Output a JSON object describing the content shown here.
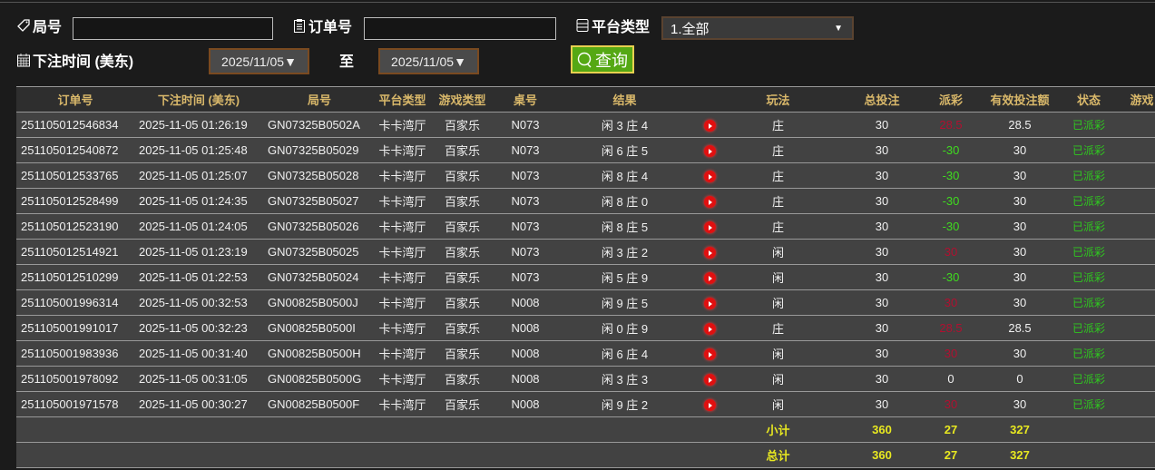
{
  "filters": {
    "round_label": "局号",
    "round_value": "",
    "order_label": "订单号",
    "order_value": "",
    "platform_label": "平台类型",
    "platform_selected": "1.全部",
    "time_label": "下注时间 (美东)",
    "date_from": "2025/11/05▼",
    "to_label": "至",
    "date_to": "2025/11/05▼",
    "query_label": "查询"
  },
  "colors": {
    "payout_negative": "#3fdc1f",
    "payout_positive": "#b01030",
    "status": "#2fc81f",
    "totals": "#e8e820",
    "header_text": "#d9b86a"
  },
  "table": {
    "headers": [
      "订单号",
      "下注时间 (美东)",
      "局号",
      "平台类型",
      "游戏类型",
      "桌号",
      "结果",
      "",
      "玩法",
      "总投注",
      "派彩",
      "有效投注额",
      "状态",
      "游戏"
    ],
    "rows": [
      [
        "251105012546834",
        "2025-11-05 01:26:19",
        "GN07325B0502A",
        "卡卡湾厅",
        "百家乐",
        "N073",
        "闲 3 庄 4",
        "庄",
        "30",
        "28.5",
        "28.5",
        "已派彩"
      ],
      [
        "251105012540872",
        "2025-11-05 01:25:48",
        "GN07325B05029",
        "卡卡湾厅",
        "百家乐",
        "N073",
        "闲 6 庄 5",
        "庄",
        "30",
        "-30",
        "30",
        "已派彩"
      ],
      [
        "251105012533765",
        "2025-11-05 01:25:07",
        "GN07325B05028",
        "卡卡湾厅",
        "百家乐",
        "N073",
        "闲 8 庄 4",
        "庄",
        "30",
        "-30",
        "30",
        "已派彩"
      ],
      [
        "251105012528499",
        "2025-11-05 01:24:35",
        "GN07325B05027",
        "卡卡湾厅",
        "百家乐",
        "N073",
        "闲 8 庄 0",
        "庄",
        "30",
        "-30",
        "30",
        "已派彩"
      ],
      [
        "251105012523190",
        "2025-11-05 01:24:05",
        "GN07325B05026",
        "卡卡湾厅",
        "百家乐",
        "N073",
        "闲 8 庄 5",
        "庄",
        "30",
        "-30",
        "30",
        "已派彩"
      ],
      [
        "251105012514921",
        "2025-11-05 01:23:19",
        "GN07325B05025",
        "卡卡湾厅",
        "百家乐",
        "N073",
        "闲 3 庄 2",
        "闲",
        "30",
        "30",
        "30",
        "已派彩"
      ],
      [
        "251105012510299",
        "2025-11-05 01:22:53",
        "GN07325B05024",
        "卡卡湾厅",
        "百家乐",
        "N073",
        "闲 5 庄 9",
        "闲",
        "30",
        "-30",
        "30",
        "已派彩"
      ],
      [
        "251105001996314",
        "2025-11-05 00:32:53",
        "GN00825B0500J",
        "卡卡湾厅",
        "百家乐",
        "N008",
        "闲 9 庄 5",
        "闲",
        "30",
        "30",
        "30",
        "已派彩"
      ],
      [
        "251105001991017",
        "2025-11-05 00:32:23",
        "GN00825B0500I",
        "卡卡湾厅",
        "百家乐",
        "N008",
        "闲 0 庄 9",
        "庄",
        "30",
        "28.5",
        "28.5",
        "已派彩"
      ],
      [
        "251105001983936",
        "2025-11-05 00:31:40",
        "GN00825B0500H",
        "卡卡湾厅",
        "百家乐",
        "N008",
        "闲 6 庄 4",
        "闲",
        "30",
        "30",
        "30",
        "已派彩"
      ],
      [
        "251105001978092",
        "2025-11-05 00:31:05",
        "GN00825B0500G",
        "卡卡湾厅",
        "百家乐",
        "N008",
        "闲 3 庄 3",
        "闲",
        "30",
        "0",
        "0",
        "已派彩"
      ],
      [
        "251105001971578",
        "2025-11-05 00:30:27",
        "GN00825B0500F",
        "卡卡湾厅",
        "百家乐",
        "N008",
        "闲 9 庄 2",
        "闲",
        "30",
        "30",
        "30",
        "已派彩"
      ]
    ],
    "subtotal": {
      "label": "小计",
      "total_bet": "360",
      "payout": "27",
      "valid_bet": "327"
    },
    "total": {
      "label": "总计",
      "total_bet": "360",
      "payout": "27",
      "valid_bet": "327"
    }
  }
}
